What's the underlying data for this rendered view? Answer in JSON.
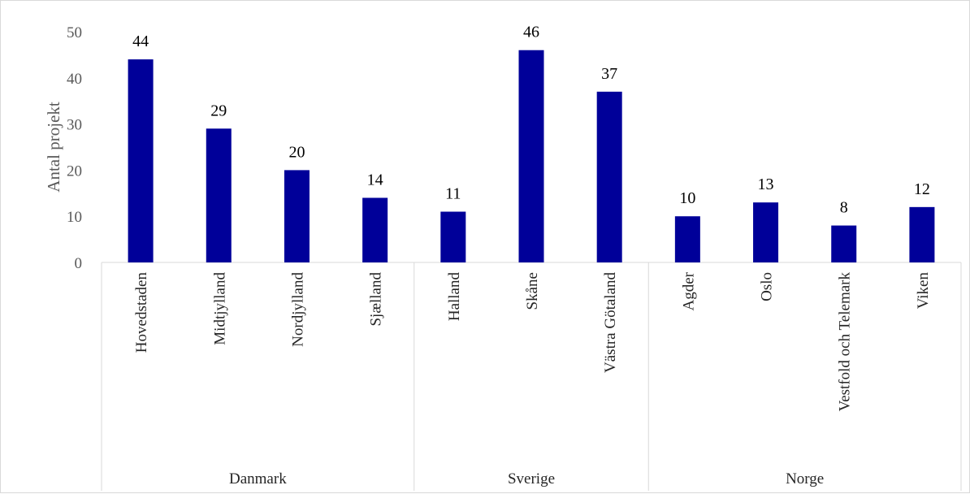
{
  "chart_data": {
    "type": "bar",
    "ylabel": "Antal projekt",
    "ylim": [
      0,
      50
    ],
    "yticks": [
      0,
      10,
      20,
      30,
      40,
      50
    ],
    "grid": false,
    "legend": "none",
    "bar_color": "#000099",
    "groups": [
      {
        "name": "Danmark",
        "categories": [
          "Hovedstaden",
          "Midtjylland",
          "Nordjylland",
          "Sjælland"
        ],
        "values": [
          44,
          29,
          20,
          14
        ]
      },
      {
        "name": "Sverige",
        "categories": [
          "Halland",
          "Skåne",
          "Västra Götaland"
        ],
        "values": [
          11,
          46,
          37
        ]
      },
      {
        "name": "Norge",
        "categories": [
          "Agder",
          "Oslo",
          "Vestfold och Telemark",
          "Viken"
        ],
        "values": [
          10,
          13,
          8,
          12
        ]
      }
    ]
  }
}
